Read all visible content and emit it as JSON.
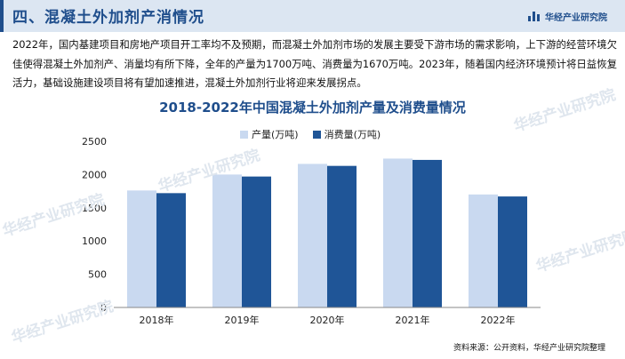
{
  "header": {
    "title": "四、混凝土外加剂产消情况"
  },
  "brand": {
    "name": "华经产业研究院"
  },
  "intro": "2022年，国内基建项目和房地产项目开工率均不及预期，而混凝土外加剂市场的发展主要受下游市场的需求影响，上下游的经营环境欠佳使得混凝土外加剂产、消量均有所下降，全年的产量为1700万吨、消费量为1670万吨。2023年，随着国内经济环境预计将日益恢复活力，基础设施建设项目将有望加速推进，混凝土外加剂行业将迎来发展拐点。",
  "watermark": "华经产业研究院",
  "chart_data": {
    "type": "bar",
    "title": "2018-2022年中国混凝土外加剂产量及消费量情况",
    "categories": [
      "2018年",
      "2019年",
      "2020年",
      "2021年",
      "2022年"
    ],
    "series": [
      {
        "name": "产量(万吨)",
        "color": "#c9d9f0",
        "values": [
          1760,
          2000,
          2160,
          2240,
          1700
        ]
      },
      {
        "name": "消费量(万吨)",
        "color": "#1f5597",
        "values": [
          1720,
          1970,
          2130,
          2220,
          1670
        ]
      }
    ],
    "ylim": [
      0,
      2500
    ],
    "yticks": [
      0,
      500,
      1000,
      1500,
      2000,
      2500
    ],
    "legend": "top-center",
    "grid": false
  },
  "source": "资料来源：公开资料，华经产业研究院整理"
}
